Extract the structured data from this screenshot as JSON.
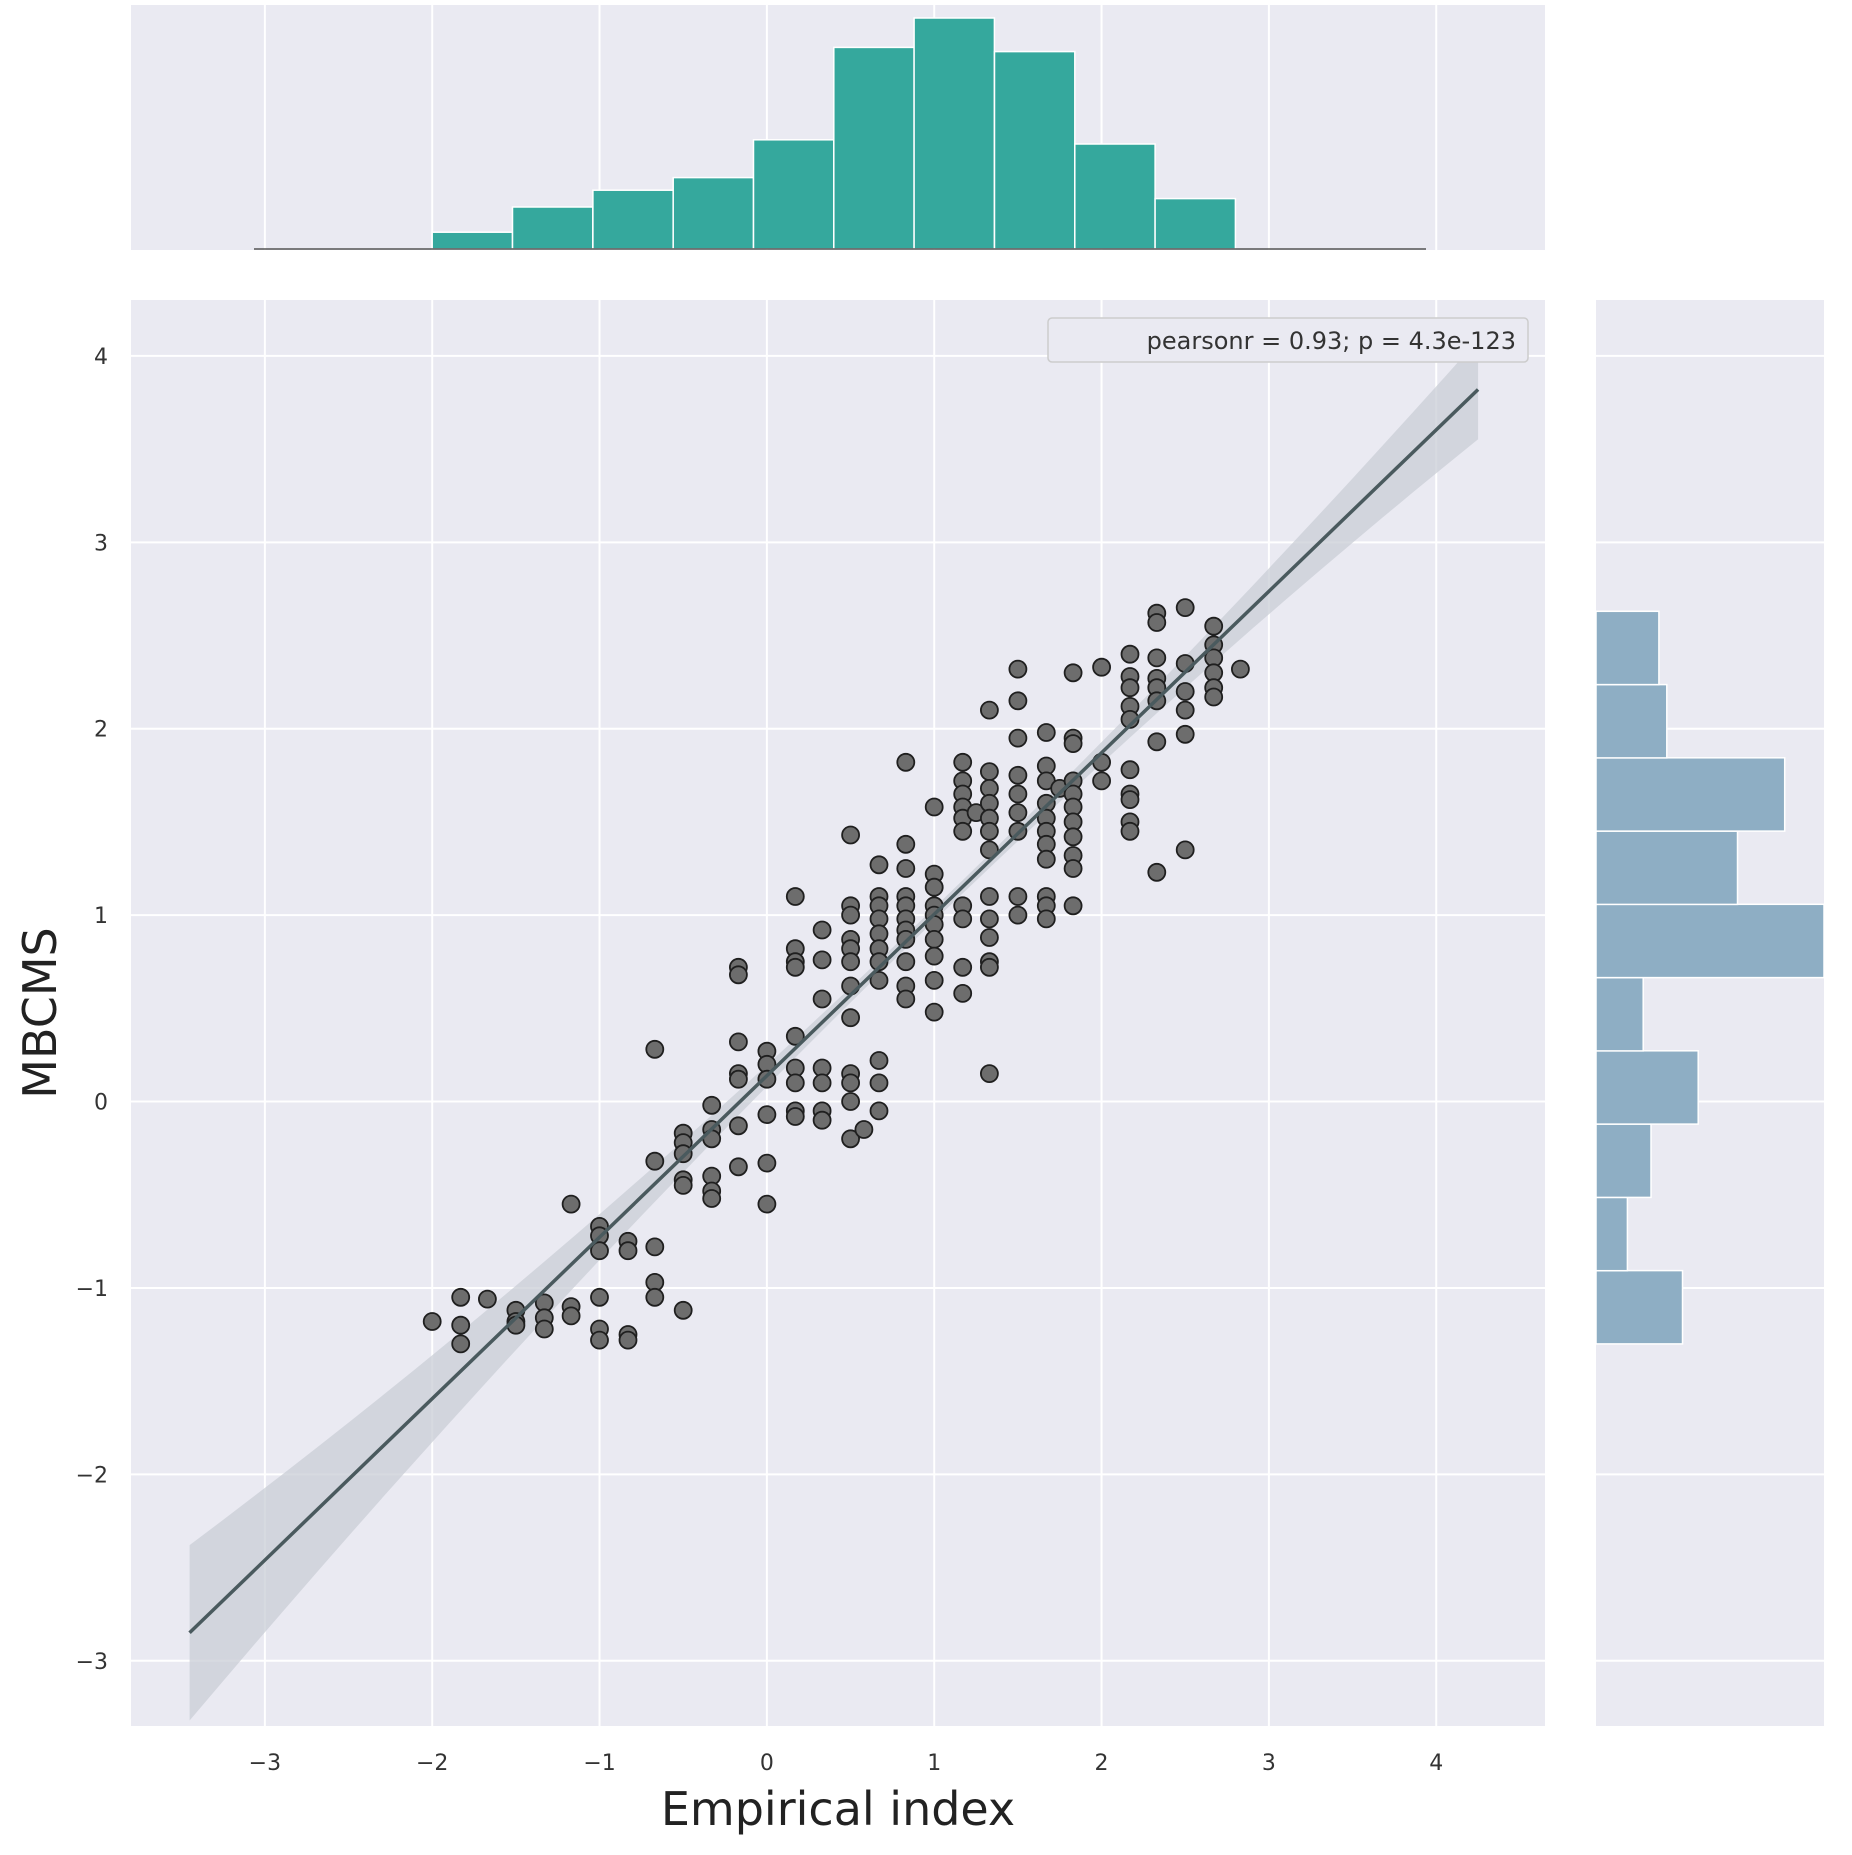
{
  "chart_data": {
    "type": "scatter",
    "xlabel": "Empirical index",
    "ylabel": "MBCMS",
    "xlim": [
      -3.8,
      4.65
    ],
    "ylim": [
      -3.35,
      4.3
    ],
    "xticks": [
      -3,
      -2,
      -1,
      0,
      1,
      2,
      3,
      4
    ],
    "yticks": [
      -3,
      -2,
      -1,
      0,
      1,
      2,
      3,
      4
    ],
    "xtick_labels": [
      "−3",
      "−2",
      "−1",
      "0",
      "1",
      "2",
      "3",
      "4"
    ],
    "ytick_labels": [
      "−3",
      "−2",
      "−1",
      "0",
      "1",
      "2",
      "3",
      "4"
    ],
    "grid": true,
    "legend": {
      "text": "pearsonr = 0.93; p = 4.3e-123",
      "placement": "top-right"
    },
    "regression_line": {
      "x": [
        -3.45,
        4.25
      ],
      "y": [
        -2.85,
        3.82
      ]
    },
    "colors": {
      "background": "#eaeaf2",
      "points": "#6d6d6d",
      "point_edge": "#1f1f1f",
      "line": "#4a5a5e",
      "top_hist": "#35a89d",
      "right_hist": "#8eaec4"
    },
    "points": [
      [
        -2.0,
        -1.18
      ],
      [
        -1.83,
        -1.05
      ],
      [
        -1.83,
        -1.2
      ],
      [
        -1.83,
        -1.3
      ],
      [
        -1.67,
        -1.06
      ],
      [
        -1.5,
        -1.12
      ],
      [
        -1.5,
        -1.18
      ],
      [
        -1.5,
        -1.2
      ],
      [
        -1.33,
        -1.08
      ],
      [
        -1.33,
        -1.16
      ],
      [
        -1.33,
        -1.22
      ],
      [
        -1.17,
        -0.55
      ],
      [
        -1.17,
        -1.1
      ],
      [
        -1.17,
        -1.15
      ],
      [
        -1.0,
        -0.67
      ],
      [
        -1.0,
        -0.72
      ],
      [
        -1.0,
        -0.8
      ],
      [
        -1.0,
        -1.05
      ],
      [
        -1.0,
        -1.22
      ],
      [
        -1.0,
        -1.28
      ],
      [
        -0.83,
        -0.75
      ],
      [
        -0.83,
        -0.8
      ],
      [
        -0.83,
        -1.25
      ],
      [
        -0.83,
        -1.28
      ],
      [
        -0.67,
        0.28
      ],
      [
        -0.67,
        -0.32
      ],
      [
        -0.67,
        -0.78
      ],
      [
        -0.67,
        -0.97
      ],
      [
        -0.67,
        -1.05
      ],
      [
        -0.5,
        -0.17
      ],
      [
        -0.5,
        -0.22
      ],
      [
        -0.5,
        -0.28
      ],
      [
        -0.5,
        -0.42
      ],
      [
        -0.5,
        -0.45
      ],
      [
        -0.5,
        -1.12
      ],
      [
        -0.33,
        -0.02
      ],
      [
        -0.33,
        -0.15
      ],
      [
        -0.33,
        -0.2
      ],
      [
        -0.33,
        -0.4
      ],
      [
        -0.33,
        -0.48
      ],
      [
        -0.33,
        -0.52
      ],
      [
        -0.17,
        0.72
      ],
      [
        -0.17,
        0.68
      ],
      [
        -0.17,
        0.32
      ],
      [
        -0.17,
        0.15
      ],
      [
        -0.17,
        0.12
      ],
      [
        -0.17,
        -0.13
      ],
      [
        -0.17,
        -0.35
      ],
      [
        0.0,
        0.27
      ],
      [
        0.0,
        0.2
      ],
      [
        0.0,
        0.12
      ],
      [
        0.0,
        -0.07
      ],
      [
        0.0,
        -0.33
      ],
      [
        0.0,
        -0.55
      ],
      [
        0.17,
        1.1
      ],
      [
        0.17,
        0.82
      ],
      [
        0.17,
        0.75
      ],
      [
        0.17,
        0.72
      ],
      [
        0.17,
        0.35
      ],
      [
        0.17,
        0.18
      ],
      [
        0.17,
        0.1
      ],
      [
        0.17,
        -0.05
      ],
      [
        0.17,
        -0.08
      ],
      [
        0.33,
        0.92
      ],
      [
        0.33,
        0.76
      ],
      [
        0.33,
        0.55
      ],
      [
        0.33,
        0.18
      ],
      [
        0.33,
        0.1
      ],
      [
        0.33,
        -0.05
      ],
      [
        0.33,
        -0.1
      ],
      [
        0.5,
        1.43
      ],
      [
        0.5,
        1.05
      ],
      [
        0.5,
        1.0
      ],
      [
        0.5,
        0.87
      ],
      [
        0.5,
        0.82
      ],
      [
        0.5,
        0.75
      ],
      [
        0.5,
        0.62
      ],
      [
        0.5,
        0.45
      ],
      [
        0.5,
        0.15
      ],
      [
        0.5,
        0.1
      ],
      [
        0.5,
        0.0
      ],
      [
        0.5,
        -0.2
      ],
      [
        0.58,
        -0.15
      ],
      [
        0.67,
        1.27
      ],
      [
        0.67,
        1.1
      ],
      [
        0.67,
        1.05
      ],
      [
        0.67,
        0.98
      ],
      [
        0.67,
        0.9
      ],
      [
        0.67,
        0.82
      ],
      [
        0.67,
        0.75
      ],
      [
        0.67,
        0.65
      ],
      [
        0.67,
        0.22
      ],
      [
        0.67,
        0.1
      ],
      [
        0.67,
        -0.05
      ],
      [
        0.83,
        1.82
      ],
      [
        0.83,
        1.38
      ],
      [
        0.83,
        1.25
      ],
      [
        0.83,
        1.1
      ],
      [
        0.83,
        1.05
      ],
      [
        0.83,
        0.98
      ],
      [
        0.83,
        0.92
      ],
      [
        0.83,
        0.87
      ],
      [
        0.83,
        0.75
      ],
      [
        0.83,
        0.62
      ],
      [
        0.83,
        0.55
      ],
      [
        1.0,
        1.58
      ],
      [
        1.0,
        1.22
      ],
      [
        1.0,
        1.15
      ],
      [
        1.0,
        1.05
      ],
      [
        1.0,
        1.0
      ],
      [
        1.0,
        0.95
      ],
      [
        1.0,
        0.87
      ],
      [
        1.0,
        0.78
      ],
      [
        1.0,
        0.65
      ],
      [
        1.0,
        0.48
      ],
      [
        1.17,
        1.82
      ],
      [
        1.17,
        1.72
      ],
      [
        1.17,
        1.65
      ],
      [
        1.17,
        1.58
      ],
      [
        1.17,
        1.52
      ],
      [
        1.17,
        1.45
      ],
      [
        1.17,
        1.05
      ],
      [
        1.17,
        0.98
      ],
      [
        1.17,
        0.72
      ],
      [
        1.17,
        0.58
      ],
      [
        1.25,
        1.55
      ],
      [
        1.33,
        2.1
      ],
      [
        1.33,
        1.77
      ],
      [
        1.33,
        1.68
      ],
      [
        1.33,
        1.6
      ],
      [
        1.33,
        1.52
      ],
      [
        1.33,
        1.45
      ],
      [
        1.33,
        1.35
      ],
      [
        1.33,
        1.1
      ],
      [
        1.33,
        0.98
      ],
      [
        1.33,
        0.88
      ],
      [
        1.33,
        0.75
      ],
      [
        1.33,
        0.72
      ],
      [
        1.33,
        0.15
      ],
      [
        1.5,
        2.32
      ],
      [
        1.5,
        2.15
      ],
      [
        1.5,
        1.95
      ],
      [
        1.5,
        1.75
      ],
      [
        1.5,
        1.65
      ],
      [
        1.5,
        1.55
      ],
      [
        1.5,
        1.45
      ],
      [
        1.5,
        1.1
      ],
      [
        1.5,
        1.0
      ],
      [
        1.67,
        1.98
      ],
      [
        1.67,
        1.8
      ],
      [
        1.67,
        1.72
      ],
      [
        1.67,
        1.6
      ],
      [
        1.67,
        1.52
      ],
      [
        1.67,
        1.45
      ],
      [
        1.67,
        1.38
      ],
      [
        1.67,
        1.3
      ],
      [
        1.67,
        1.1
      ],
      [
        1.67,
        1.05
      ],
      [
        1.67,
        0.98
      ],
      [
        1.75,
        1.68
      ],
      [
        1.83,
        1.95
      ],
      [
        1.83,
        1.92
      ],
      [
        1.83,
        1.72
      ],
      [
        1.83,
        1.65
      ],
      [
        1.83,
        1.58
      ],
      [
        1.83,
        1.5
      ],
      [
        1.83,
        1.42
      ],
      [
        1.83,
        1.32
      ],
      [
        1.83,
        1.25
      ],
      [
        1.83,
        1.05
      ],
      [
        1.83,
        2.3
      ],
      [
        2.0,
        2.33
      ],
      [
        2.0,
        1.82
      ],
      [
        2.0,
        1.72
      ],
      [
        2.17,
        2.4
      ],
      [
        2.17,
        2.28
      ],
      [
        2.17,
        2.22
      ],
      [
        2.17,
        2.12
      ],
      [
        2.17,
        2.05
      ],
      [
        2.17,
        1.78
      ],
      [
        2.17,
        1.65
      ],
      [
        2.17,
        1.62
      ],
      [
        2.17,
        1.5
      ],
      [
        2.17,
        1.45
      ],
      [
        2.33,
        2.62
      ],
      [
        2.33,
        2.57
      ],
      [
        2.33,
        2.38
      ],
      [
        2.33,
        2.27
      ],
      [
        2.33,
        2.22
      ],
      [
        2.33,
        2.15
      ],
      [
        2.33,
        1.93
      ],
      [
        2.33,
        1.23
      ],
      [
        2.5,
        2.65
      ],
      [
        2.5,
        2.35
      ],
      [
        2.5,
        2.2
      ],
      [
        2.5,
        2.1
      ],
      [
        2.5,
        1.97
      ],
      [
        2.5,
        1.35
      ],
      [
        2.67,
        2.55
      ],
      [
        2.67,
        2.45
      ],
      [
        2.67,
        2.38
      ],
      [
        2.67,
        2.3
      ],
      [
        2.67,
        2.22
      ],
      [
        2.67,
        2.17
      ],
      [
        2.83,
        2.32
      ]
    ],
    "top_histogram": {
      "bin_edges": [
        -2.0,
        -1.52,
        -1.04,
        -0.56,
        -0.08,
        0.4,
        0.88,
        1.36,
        1.84,
        2.32,
        2.8
      ],
      "counts": [
        4,
        10,
        14,
        17,
        26,
        48,
        55,
        47,
        25,
        12
      ]
    },
    "right_histogram": {
      "bin_edges": [
        -1.3,
        -0.907,
        -0.514,
        -0.121,
        0.272,
        0.665,
        1.058,
        1.451,
        1.844,
        2.237,
        2.63
      ],
      "counts": [
        11,
        4,
        7,
        13,
        6,
        29,
        18,
        24,
        9,
        8
      ]
    }
  }
}
